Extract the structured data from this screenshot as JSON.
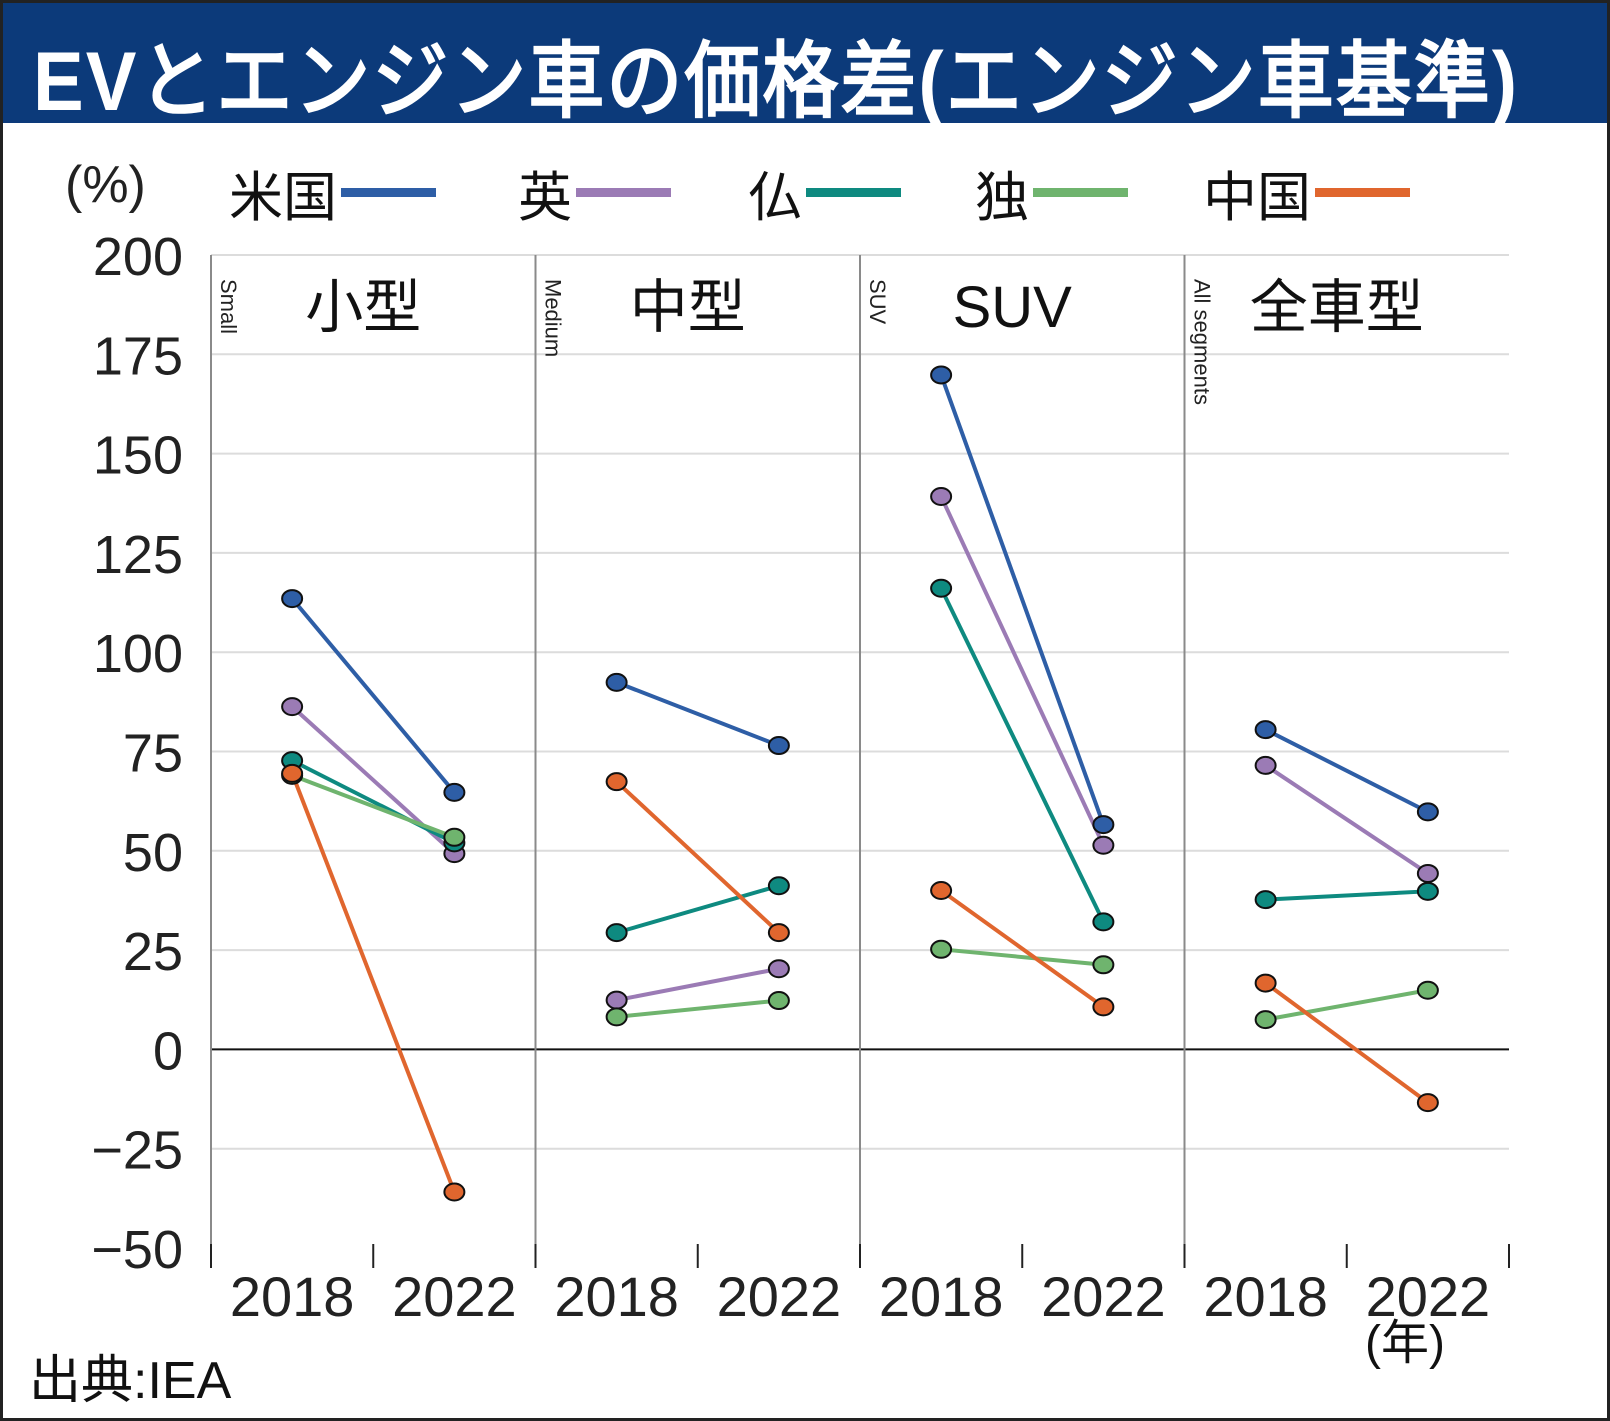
{
  "title": "EVとエンジン車の価格差(エンジン車基準)",
  "unit_label": "(%)",
  "source": "出典:IEA",
  "year_unit": "(年)",
  "chart_data": {
    "type": "line",
    "title": "EVとエンジン車の価格差(エンジン車基準)",
    "ylabel": "(%)",
    "ylim": [
      -50,
      200
    ],
    "yticks": [
      200,
      175,
      150,
      125,
      100,
      75,
      50,
      25,
      0,
      -25,
      -50
    ],
    "grid": true,
    "legend_position": "top",
    "x": [
      "2018",
      "2022"
    ],
    "panels": [
      {
        "title": "小型",
        "subtitle": "Small"
      },
      {
        "title": "中型",
        "subtitle": "Medium"
      },
      {
        "title": "SUV",
        "subtitle": "SUV"
      },
      {
        "title": "全車型",
        "subtitle": "All segments"
      }
    ],
    "series": [
      {
        "name": "米国",
        "color": "#2e5ea6",
        "values": [
          [
            113.5,
            64.7
          ],
          [
            92.4,
            76.5
          ],
          [
            169.8,
            56.6
          ],
          [
            80.5,
            59.8
          ]
        ]
      },
      {
        "name": "英",
        "color": "#9b7bb5",
        "values": [
          [
            86.3,
            49.3
          ],
          [
            12.4,
            20.3
          ],
          [
            139.2,
            51.4
          ],
          [
            71.5,
            44.3
          ]
        ]
      },
      {
        "name": "仏",
        "color": "#0e8a80",
        "values": [
          [
            72.7,
            52.0
          ],
          [
            29.4,
            41.2
          ],
          [
            116.1,
            32.1
          ],
          [
            37.7,
            39.8
          ]
        ]
      },
      {
        "name": "独",
        "color": "#6fb46e",
        "values": [
          [
            69.0,
            53.4
          ],
          [
            8.2,
            12.3
          ],
          [
            25.2,
            21.3
          ],
          [
            7.5,
            14.9
          ]
        ]
      },
      {
        "name": "中国",
        "color": "#e0662e",
        "values": [
          [
            69.5,
            -35.9
          ],
          [
            67.4,
            29.4
          ],
          [
            40.0,
            10.7
          ],
          [
            16.7,
            -13.4
          ]
        ]
      }
    ]
  }
}
